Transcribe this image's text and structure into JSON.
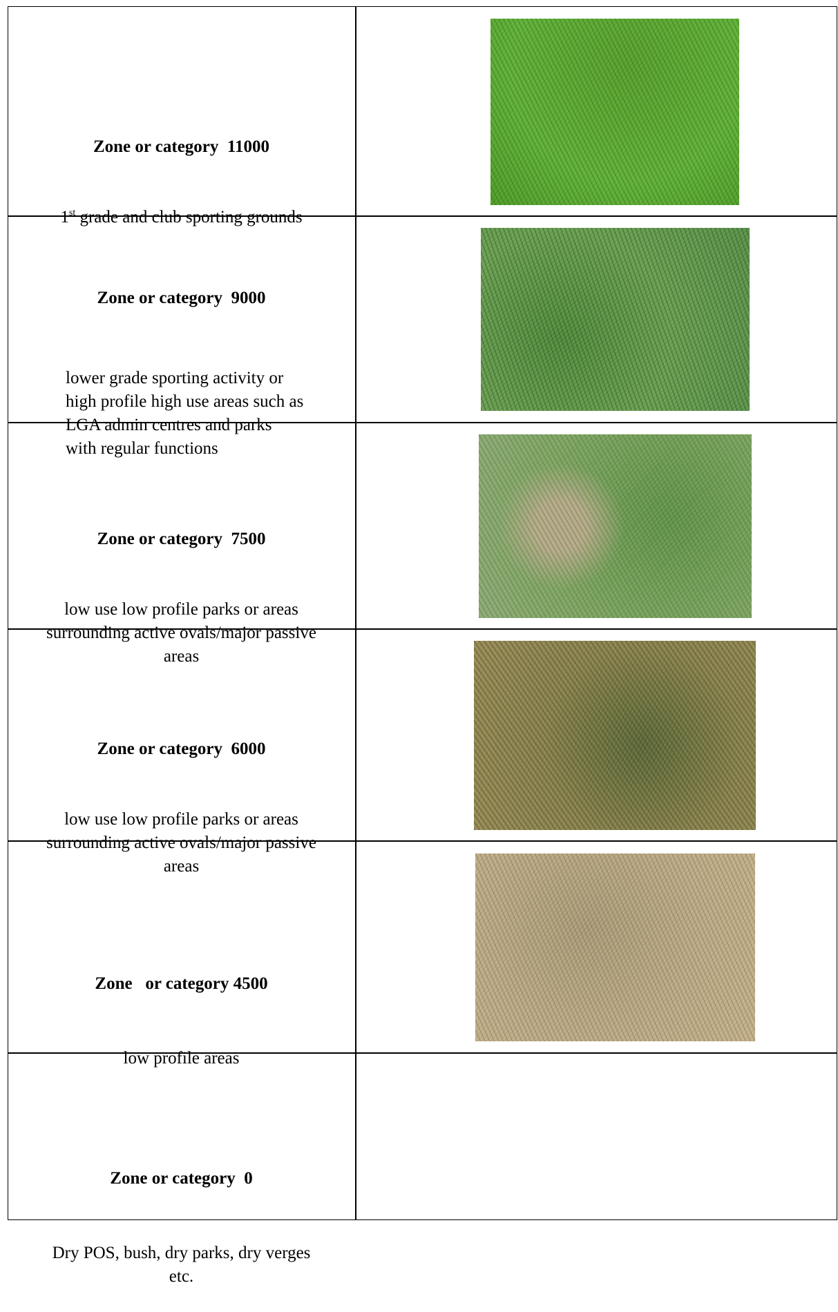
{
  "table": {
    "rows": [
      {
        "title": "Zone or category  11000",
        "description": {
          "number": "1",
          "superscript": "st",
          "text": " grade and club sporting grounds"
        }
      },
      {
        "title": "Zone or category  9000",
        "description": [
          "lower grade sporting activity or",
          "high profile high use areas such as",
          "LGA admin centres and parks",
          "with regular functions"
        ]
      },
      {
        "title": "Zone or category  7500",
        "description": [
          "low use low profile parks or areas",
          "surrounding active ovals/major passive",
          "areas"
        ]
      },
      {
        "title": "Zone or category  6000",
        "description": [
          "low use low profile parks or areas",
          "surrounding active ovals/major passive",
          "areas"
        ]
      },
      {
        "title": "Zone   or category 4500",
        "description": [
          "low profile areas"
        ]
      },
      {
        "title": "Zone or category  0",
        "description": [
          "Dry POS, bush, dry parks, dry verges",
          "etc."
        ]
      }
    ]
  }
}
